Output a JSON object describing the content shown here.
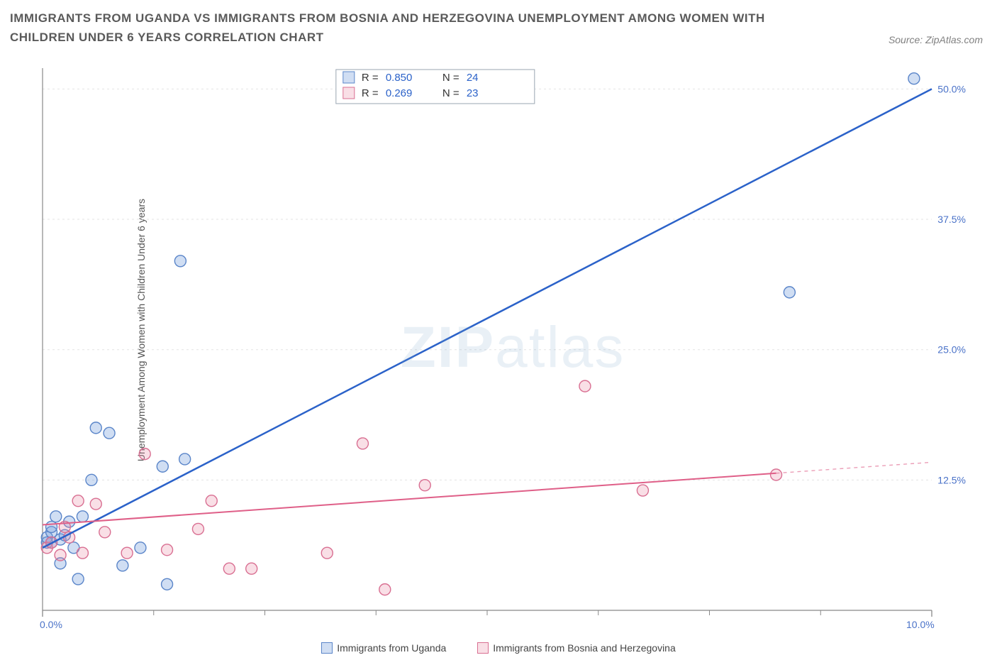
{
  "title": "IMMIGRANTS FROM UGANDA VS IMMIGRANTS FROM BOSNIA AND HERZEGOVINA UNEMPLOYMENT AMONG WOMEN WITH CHILDREN UNDER 6 YEARS CORRELATION CHART",
  "source": "Source: ZipAtlas.com",
  "y_axis_label": "Unemployment Among Women with Children Under 6 years",
  "watermark_bold": "ZIP",
  "watermark_rest": "atlas",
  "chart": {
    "type": "scatter",
    "background_color": "#ffffff",
    "grid_color": "#e3e3e3",
    "axis_color": "#888888",
    "tick_color": "#888888",
    "xlim": [
      0,
      10
    ],
    "ylim": [
      0,
      52
    ],
    "x_ticks_major": [
      0,
      10
    ],
    "x_ticks_minor": [
      1.25,
      2.5,
      3.75,
      5,
      6.25,
      7.5,
      8.75
    ],
    "x_tick_labels": {
      "0": "0.0%",
      "10": "10.0%"
    },
    "y_ticks": [
      12.5,
      25.0,
      37.5,
      50.0
    ],
    "y_tick_labels": [
      "12.5%",
      "25.0%",
      "37.5%",
      "50.0%"
    ],
    "y_tick_label_color": "#4a72c8",
    "series": [
      {
        "name": "Immigrants from Uganda",
        "marker_fill": "rgba(120,160,220,0.35)",
        "marker_stroke": "#5a85c9",
        "marker_radius": 8,
        "line_color": "#2b62c9",
        "line_width": 2.5,
        "R": "0.850",
        "N": "24",
        "points": [
          [
            0.05,
            6.5
          ],
          [
            0.05,
            7.0
          ],
          [
            0.1,
            6.5
          ],
          [
            0.1,
            7.5
          ],
          [
            0.1,
            8.0
          ],
          [
            0.15,
            9.0
          ],
          [
            0.2,
            4.5
          ],
          [
            0.2,
            6.8
          ],
          [
            0.25,
            7.2
          ],
          [
            0.3,
            8.5
          ],
          [
            0.35,
            6.0
          ],
          [
            0.4,
            3.0
          ],
          [
            0.45,
            9.0
          ],
          [
            0.55,
            12.5
          ],
          [
            0.6,
            17.5
          ],
          [
            0.75,
            17.0
          ],
          [
            0.9,
            4.3
          ],
          [
            1.1,
            6.0
          ],
          [
            1.35,
            13.8
          ],
          [
            1.4,
            2.5
          ],
          [
            1.55,
            33.5
          ],
          [
            1.6,
            14.5
          ],
          [
            8.4,
            30.5
          ],
          [
            9.8,
            51.0
          ]
        ],
        "fit": {
          "x1": 0,
          "y1": 6.0,
          "x2": 10,
          "y2": 50,
          "solid_until_x": 10
        }
      },
      {
        "name": "Immigrants from Bosnia and Herzegovina",
        "marker_fill": "rgba(235,140,165,0.28)",
        "marker_stroke": "#d96f92",
        "marker_radius": 8,
        "line_color": "#df5f88",
        "line_width": 2,
        "R": "0.269",
        "N": "23",
        "points": [
          [
            0.05,
            6.0
          ],
          [
            0.1,
            6.5
          ],
          [
            0.2,
            5.3
          ],
          [
            0.25,
            8.0
          ],
          [
            0.3,
            7.0
          ],
          [
            0.4,
            10.5
          ],
          [
            0.45,
            5.5
          ],
          [
            0.6,
            10.2
          ],
          [
            0.7,
            7.5
          ],
          [
            0.95,
            5.5
          ],
          [
            1.15,
            15.0
          ],
          [
            1.4,
            5.8
          ],
          [
            1.75,
            7.8
          ],
          [
            1.9,
            10.5
          ],
          [
            2.1,
            4.0
          ],
          [
            2.35,
            4.0
          ],
          [
            3.2,
            5.5
          ],
          [
            3.6,
            16.0
          ],
          [
            3.85,
            2.0
          ],
          [
            4.3,
            12.0
          ],
          [
            6.1,
            21.5
          ],
          [
            6.75,
            11.5
          ],
          [
            8.25,
            13.0
          ]
        ],
        "fit": {
          "x1": 0,
          "y1": 8.2,
          "x2": 10,
          "y2": 14.2,
          "solid_until_x": 8.25
        }
      }
    ],
    "legend_box": {
      "border_color": "#9aa6b2",
      "labels": {
        "R": "R =",
        "N": "N ="
      },
      "value_color": "#2b62c9"
    }
  },
  "bottom_legend": [
    {
      "label": "Immigrants from Uganda",
      "fill": "rgba(120,160,220,0.35)",
      "stroke": "#5a85c9"
    },
    {
      "label": "Immigrants from Bosnia and Herzegovina",
      "fill": "rgba(235,140,165,0.28)",
      "stroke": "#d96f92"
    }
  ]
}
